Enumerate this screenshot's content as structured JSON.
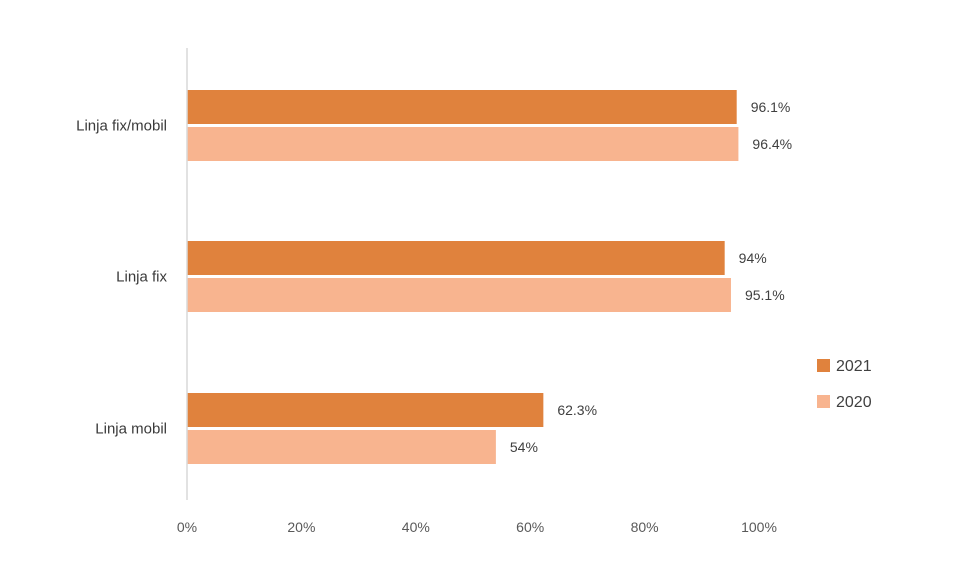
{
  "chart_data": {
    "type": "bar",
    "orientation": "horizontal",
    "categories": [
      "Linja fix/mobil",
      "Linja fix",
      "Linja mobil"
    ],
    "series": [
      {
        "name": "2021",
        "values": [
          96.1,
          94,
          62.3
        ],
        "labels": [
          "96.1%",
          "94%",
          "62.3%"
        ],
        "color": "#E0823D"
      },
      {
        "name": "2020",
        "values": [
          96.4,
          95.1,
          54
        ],
        "labels": [
          "96.4%",
          "95.1%",
          "54%"
        ],
        "color": "#F8B48F"
      }
    ],
    "xlim": [
      0,
      100
    ],
    "x_ticks": [
      0,
      20,
      40,
      60,
      80,
      100
    ],
    "x_tick_labels": [
      "0%",
      "20%",
      "40%",
      "60%",
      "80%",
      "100%"
    ],
    "title": "",
    "xlabel": "",
    "ylabel": "",
    "grid": false,
    "legend": {
      "placement": "right",
      "entries": [
        "2021",
        "2020"
      ]
    }
  }
}
